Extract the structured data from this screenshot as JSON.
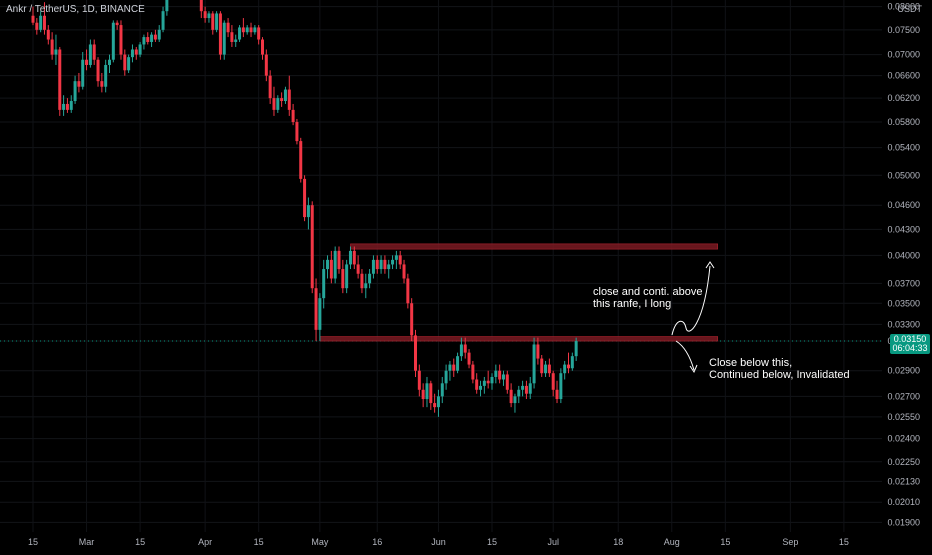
{
  "header": {
    "symbol": "Ankr / TetherUS, 1D, BINANCE",
    "currency": "USDT"
  },
  "price_tag": {
    "price": "0.03150",
    "countdown": "06:04:33"
  },
  "annotations": {
    "upper_note": "close and conti. above\nthis ranfe, I long",
    "lower_note": "Close below this,\nContinued below, Invalidated"
  },
  "colors": {
    "background": "#000000",
    "up": "#26a69a",
    "down": "#f23645",
    "zone": "#7a1a22",
    "text": "#b2b5be",
    "price_tag": "#089981"
  },
  "chart_data": {
    "type": "candlestick",
    "scale": "log",
    "ylim": [
      0.0185,
      0.0815
    ],
    "yticks": [
      "0.08000",
      "0.07500",
      "0.07000",
      "0.06600",
      "0.06200",
      "0.05800",
      "0.05400",
      "0.05000",
      "0.04600",
      "0.04300",
      "0.04000",
      "0.03700",
      "0.03500",
      "0.03300",
      "0.03150",
      "0.02900",
      "0.02700",
      "0.02550",
      "0.02400",
      "0.02250",
      "0.02130",
      "0.02010",
      "0.01900"
    ],
    "xticks": [
      "15",
      "Mar",
      "15",
      "Apr",
      "15",
      "May",
      "16",
      "Jun",
      "15",
      "Jul",
      "18",
      "Aug",
      "15",
      "Sep",
      "15"
    ],
    "zones": [
      {
        "name": "upper range",
        "from": "May 9",
        "to": "Aug 13",
        "low": 0.0407,
        "high": 0.0413
      },
      {
        "name": "lower range",
        "from": "May 1",
        "to": "Aug 13",
        "low": 0.0315,
        "high": 0.0319
      }
    ],
    "current_price": 0.0315,
    "candles": [
      {
        "date": "Feb 15",
        "o": 0.078,
        "h": 0.08,
        "l": 0.076,
        "c": 0.0765
      },
      {
        "date": "Feb 16",
        "o": 0.0765,
        "h": 0.0775,
        "l": 0.074,
        "c": 0.075
      },
      {
        "date": "Feb 17",
        "o": 0.075,
        "h": 0.079,
        "l": 0.0745,
        "c": 0.078
      },
      {
        "date": "Feb 18",
        "o": 0.078,
        "h": 0.081,
        "l": 0.074,
        "c": 0.075
      },
      {
        "date": "Feb 19",
        "o": 0.075,
        "h": 0.076,
        "l": 0.072,
        "c": 0.073
      },
      {
        "date": "Feb 20",
        "o": 0.073,
        "h": 0.0745,
        "l": 0.069,
        "c": 0.07
      },
      {
        "date": "Feb 21",
        "o": 0.07,
        "h": 0.074,
        "l": 0.068,
        "c": 0.071
      },
      {
        "date": "Feb 22",
        "o": 0.071,
        "h": 0.0715,
        "l": 0.059,
        "c": 0.06
      },
      {
        "date": "Feb 23",
        "o": 0.06,
        "h": 0.0625,
        "l": 0.059,
        "c": 0.061
      },
      {
        "date": "Feb 24",
        "o": 0.061,
        "h": 0.062,
        "l": 0.0595,
        "c": 0.06
      },
      {
        "date": "Feb 25",
        "o": 0.06,
        "h": 0.0625,
        "l": 0.0595,
        "c": 0.0615
      },
      {
        "date": "Feb 26",
        "o": 0.0615,
        "h": 0.066,
        "l": 0.061,
        "c": 0.065
      },
      {
        "date": "Feb 27",
        "o": 0.065,
        "h": 0.0665,
        "l": 0.063,
        "c": 0.064
      },
      {
        "date": "Feb 28",
        "o": 0.064,
        "h": 0.0705,
        "l": 0.0635,
        "c": 0.069
      },
      {
        "date": "Mar 1",
        "o": 0.069,
        "h": 0.071,
        "l": 0.067,
        "c": 0.068
      },
      {
        "date": "Mar 2",
        "o": 0.068,
        "h": 0.073,
        "l": 0.0675,
        "c": 0.072
      },
      {
        "date": "Mar 3",
        "o": 0.072,
        "h": 0.073,
        "l": 0.068,
        "c": 0.069
      },
      {
        "date": "Mar 4",
        "o": 0.069,
        "h": 0.0695,
        "l": 0.064,
        "c": 0.065
      },
      {
        "date": "Mar 5",
        "o": 0.065,
        "h": 0.0665,
        "l": 0.063,
        "c": 0.064
      },
      {
        "date": "Mar 6",
        "o": 0.064,
        "h": 0.069,
        "l": 0.063,
        "c": 0.068
      },
      {
        "date": "Mar 7",
        "o": 0.068,
        "h": 0.07,
        "l": 0.0665,
        "c": 0.069
      },
      {
        "date": "Mar 8",
        "o": 0.069,
        "h": 0.077,
        "l": 0.0685,
        "c": 0.0765
      },
      {
        "date": "Mar 9",
        "o": 0.0765,
        "h": 0.077,
        "l": 0.075,
        "c": 0.076
      },
      {
        "date": "Mar 10",
        "o": 0.076,
        "h": 0.077,
        "l": 0.069,
        "c": 0.07
      },
      {
        "date": "Mar 11",
        "o": 0.07,
        "h": 0.071,
        "l": 0.066,
        "c": 0.067
      },
      {
        "date": "Mar 12",
        "o": 0.067,
        "h": 0.07,
        "l": 0.0665,
        "c": 0.0695
      },
      {
        "date": "Mar 13",
        "o": 0.0695,
        "h": 0.072,
        "l": 0.0685,
        "c": 0.071
      },
      {
        "date": "Mar 14",
        "o": 0.071,
        "h": 0.0715,
        "l": 0.069,
        "c": 0.07
      },
      {
        "date": "Mar 15",
        "o": 0.07,
        "h": 0.0725,
        "l": 0.0695,
        "c": 0.072
      },
      {
        "date": "Mar 16",
        "o": 0.072,
        "h": 0.074,
        "l": 0.071,
        "c": 0.0735
      },
      {
        "date": "Mar 17",
        "o": 0.0735,
        "h": 0.0745,
        "l": 0.072,
        "c": 0.0725
      },
      {
        "date": "Mar 18",
        "o": 0.0725,
        "h": 0.0745,
        "l": 0.0715,
        "c": 0.074
      },
      {
        "date": "Mar 19",
        "o": 0.074,
        "h": 0.075,
        "l": 0.0725,
        "c": 0.073
      },
      {
        "date": "Mar 20",
        "o": 0.073,
        "h": 0.076,
        "l": 0.0725,
        "c": 0.075
      },
      {
        "date": "Mar 21",
        "o": 0.075,
        "h": 0.08,
        "l": 0.0745,
        "c": 0.079
      },
      {
        "date": "Mar 22",
        "o": 0.079,
        "h": 0.082,
        "l": 0.078,
        "c": 0.0815
      },
      {
        "date": "Mar 31",
        "o": 0.0815,
        "h": 0.082,
        "l": 0.0775,
        "c": 0.079
      },
      {
        "date": "Apr 1",
        "o": 0.079,
        "h": 0.08,
        "l": 0.0765,
        "c": 0.0775
      },
      {
        "date": "Apr 2",
        "o": 0.0775,
        "h": 0.079,
        "l": 0.0765,
        "c": 0.0785
      },
      {
        "date": "Apr 3",
        "o": 0.0785,
        "h": 0.079,
        "l": 0.074,
        "c": 0.075
      },
      {
        "date": "Apr 4",
        "o": 0.075,
        "h": 0.079,
        "l": 0.0745,
        "c": 0.0785
      },
      {
        "date": "Apr 5",
        "o": 0.0785,
        "h": 0.079,
        "l": 0.069,
        "c": 0.07
      },
      {
        "date": "Apr 6",
        "o": 0.07,
        "h": 0.077,
        "l": 0.069,
        "c": 0.0765
      },
      {
        "date": "Apr 7",
        "o": 0.0765,
        "h": 0.0775,
        "l": 0.0735,
        "c": 0.0745
      },
      {
        "date": "Apr 8",
        "o": 0.0745,
        "h": 0.076,
        "l": 0.0715,
        "c": 0.0725
      },
      {
        "date": "Apr 9",
        "o": 0.0725,
        "h": 0.074,
        "l": 0.0715,
        "c": 0.073
      },
      {
        "date": "Apr 10",
        "o": 0.073,
        "h": 0.076,
        "l": 0.0725,
        "c": 0.0755
      },
      {
        "date": "Apr 11",
        "o": 0.0755,
        "h": 0.0775,
        "l": 0.0735,
        "c": 0.0745
      },
      {
        "date": "Apr 12",
        "o": 0.0745,
        "h": 0.076,
        "l": 0.074,
        "c": 0.0755
      },
      {
        "date": "Apr 13",
        "o": 0.0755,
        "h": 0.0765,
        "l": 0.0735,
        "c": 0.0745
      },
      {
        "date": "Apr 14",
        "o": 0.0745,
        "h": 0.076,
        "l": 0.074,
        "c": 0.0755
      },
      {
        "date": "Apr 15",
        "o": 0.0755,
        "h": 0.076,
        "l": 0.072,
        "c": 0.073
      },
      {
        "date": "Apr 16",
        "o": 0.073,
        "h": 0.0735,
        "l": 0.069,
        "c": 0.07
      },
      {
        "date": "Apr 17",
        "o": 0.07,
        "h": 0.071,
        "l": 0.065,
        "c": 0.066
      },
      {
        "date": "Apr 18",
        "o": 0.066,
        "h": 0.067,
        "l": 0.061,
        "c": 0.062
      },
      {
        "date": "Apr 19",
        "o": 0.062,
        "h": 0.064,
        "l": 0.059,
        "c": 0.06
      },
      {
        "date": "Apr 20",
        "o": 0.06,
        "h": 0.0625,
        "l": 0.0595,
        "c": 0.062
      },
      {
        "date": "Apr 21",
        "o": 0.062,
        "h": 0.063,
        "l": 0.0605,
        "c": 0.0615
      },
      {
        "date": "Apr 22",
        "o": 0.0615,
        "h": 0.064,
        "l": 0.061,
        "c": 0.0635
      },
      {
        "date": "Apr 23",
        "o": 0.0635,
        "h": 0.066,
        "l": 0.059,
        "c": 0.06
      },
      {
        "date": "Apr 24",
        "o": 0.06,
        "h": 0.061,
        "l": 0.0575,
        "c": 0.058
      },
      {
        "date": "Apr 25",
        "o": 0.058,
        "h": 0.0585,
        "l": 0.0545,
        "c": 0.055
      },
      {
        "date": "Apr 26",
        "o": 0.055,
        "h": 0.0555,
        "l": 0.049,
        "c": 0.0495
      },
      {
        "date": "Apr 27",
        "o": 0.0495,
        "h": 0.05,
        "l": 0.044,
        "c": 0.0445
      },
      {
        "date": "Apr 28",
        "o": 0.0445,
        "h": 0.047,
        "l": 0.043,
        "c": 0.046
      },
      {
        "date": "Apr 29",
        "o": 0.046,
        "h": 0.0465,
        "l": 0.036,
        "c": 0.0365
      },
      {
        "date": "Apr 30",
        "o": 0.0365,
        "h": 0.0375,
        "l": 0.0315,
        "c": 0.0325
      },
      {
        "date": "May 1",
        "o": 0.0325,
        "h": 0.036,
        "l": 0.0315,
        "c": 0.0355
      },
      {
        "date": "May 2",
        "o": 0.0355,
        "h": 0.0395,
        "l": 0.0345,
        "c": 0.0385
      },
      {
        "date": "May 3",
        "o": 0.0385,
        "h": 0.04,
        "l": 0.0375,
        "c": 0.0395
      },
      {
        "date": "May 4",
        "o": 0.0395,
        "h": 0.0405,
        "l": 0.037,
        "c": 0.0375
      },
      {
        "date": "May 5",
        "o": 0.0375,
        "h": 0.041,
        "l": 0.037,
        "c": 0.0405
      },
      {
        "date": "May 6",
        "o": 0.0405,
        "h": 0.041,
        "l": 0.038,
        "c": 0.0385
      },
      {
        "date": "May 7",
        "o": 0.0385,
        "h": 0.0395,
        "l": 0.036,
        "c": 0.0365
      },
      {
        "date": "May 8",
        "o": 0.0365,
        "h": 0.0395,
        "l": 0.036,
        "c": 0.039
      },
      {
        "date": "May 9",
        "o": 0.039,
        "h": 0.041,
        "l": 0.0385,
        "c": 0.0405
      },
      {
        "date": "May 10",
        "o": 0.0405,
        "h": 0.041,
        "l": 0.0385,
        "c": 0.039
      },
      {
        "date": "May 11",
        "o": 0.039,
        "h": 0.04,
        "l": 0.0375,
        "c": 0.038
      },
      {
        "date": "May 12",
        "o": 0.038,
        "h": 0.0385,
        "l": 0.036,
        "c": 0.0365
      },
      {
        "date": "May 13",
        "o": 0.0365,
        "h": 0.038,
        "l": 0.0355,
        "c": 0.037
      },
      {
        "date": "May 14",
        "o": 0.037,
        "h": 0.0385,
        "l": 0.0365,
        "c": 0.038
      },
      {
        "date": "May 15",
        "o": 0.038,
        "h": 0.04,
        "l": 0.0375,
        "c": 0.0395
      },
      {
        "date": "May 16",
        "o": 0.0395,
        "h": 0.04,
        "l": 0.038,
        "c": 0.0385
      },
      {
        "date": "May 17",
        "o": 0.0385,
        "h": 0.04,
        "l": 0.038,
        "c": 0.0395
      },
      {
        "date": "May 18",
        "o": 0.0395,
        "h": 0.04,
        "l": 0.038,
        "c": 0.0385
      },
      {
        "date": "May 19",
        "o": 0.0385,
        "h": 0.0395,
        "l": 0.0375,
        "c": 0.039
      },
      {
        "date": "May 20",
        "o": 0.039,
        "h": 0.04,
        "l": 0.0385,
        "c": 0.0395
      },
      {
        "date": "May 21",
        "o": 0.0395,
        "h": 0.0405,
        "l": 0.0385,
        "c": 0.04
      },
      {
        "date": "May 22",
        "o": 0.04,
        "h": 0.0405,
        "l": 0.0385,
        "c": 0.039
      },
      {
        "date": "May 23",
        "o": 0.039,
        "h": 0.0395,
        "l": 0.037,
        "c": 0.0375
      },
      {
        "date": "May 24",
        "o": 0.0375,
        "h": 0.038,
        "l": 0.0345,
        "c": 0.035
      },
      {
        "date": "May 25",
        "o": 0.035,
        "h": 0.0355,
        "l": 0.0315,
        "c": 0.032
      },
      {
        "date": "May 26",
        "o": 0.032,
        "h": 0.0325,
        "l": 0.0285,
        "c": 0.029
      },
      {
        "date": "May 27",
        "o": 0.029,
        "h": 0.0295,
        "l": 0.027,
        "c": 0.0275
      },
      {
        "date": "May 28",
        "o": 0.0275,
        "h": 0.028,
        "l": 0.0262,
        "c": 0.0268
      },
      {
        "date": "May 29",
        "o": 0.0268,
        "h": 0.0285,
        "l": 0.0262,
        "c": 0.028
      },
      {
        "date": "May 30",
        "o": 0.028,
        "h": 0.0282,
        "l": 0.026,
        "c": 0.0265
      },
      {
        "date": "May 31",
        "o": 0.0265,
        "h": 0.0272,
        "l": 0.0258,
        "c": 0.0262
      },
      {
        "date": "Jun 1",
        "o": 0.0262,
        "h": 0.0275,
        "l": 0.0255,
        "c": 0.027
      },
      {
        "date": "Jun 2",
        "o": 0.027,
        "h": 0.0285,
        "l": 0.0265,
        "c": 0.028
      },
      {
        "date": "Jun 3",
        "o": 0.028,
        "h": 0.0295,
        "l": 0.0275,
        "c": 0.029
      },
      {
        "date": "Jun 4",
        "o": 0.029,
        "h": 0.0298,
        "l": 0.0282,
        "c": 0.0295
      },
      {
        "date": "Jun 5",
        "o": 0.0295,
        "h": 0.03,
        "l": 0.0285,
        "c": 0.029
      },
      {
        "date": "Jun 6",
        "o": 0.029,
        "h": 0.0305,
        "l": 0.0288,
        "c": 0.0302
      },
      {
        "date": "Jun 7",
        "o": 0.0302,
        "h": 0.0318,
        "l": 0.0298,
        "c": 0.0312
      },
      {
        "date": "Jun 8",
        "o": 0.0312,
        "h": 0.0318,
        "l": 0.03,
        "c": 0.0305
      },
      {
        "date": "Jun 9",
        "o": 0.0305,
        "h": 0.0308,
        "l": 0.0292,
        "c": 0.0295
      },
      {
        "date": "Jun 10",
        "o": 0.0295,
        "h": 0.0298,
        "l": 0.028,
        "c": 0.0283
      },
      {
        "date": "Jun 11",
        "o": 0.0283,
        "h": 0.0288,
        "l": 0.0272,
        "c": 0.0275
      },
      {
        "date": "Jun 12",
        "o": 0.0275,
        "h": 0.0282,
        "l": 0.027,
        "c": 0.0278
      },
      {
        "date": "Jun 13",
        "o": 0.0278,
        "h": 0.0285,
        "l": 0.0272,
        "c": 0.0282
      },
      {
        "date": "Jun 14",
        "o": 0.0282,
        "h": 0.029,
        "l": 0.0276,
        "c": 0.028
      },
      {
        "date": "Jun 15",
        "o": 0.028,
        "h": 0.0288,
        "l": 0.0275,
        "c": 0.0285
      },
      {
        "date": "Jun 16",
        "o": 0.0285,
        "h": 0.0295,
        "l": 0.028,
        "c": 0.029
      },
      {
        "date": "Jun 17",
        "o": 0.029,
        "h": 0.0295,
        "l": 0.028,
        "c": 0.0283
      },
      {
        "date": "Jun 18",
        "o": 0.0283,
        "h": 0.029,
        "l": 0.0278,
        "c": 0.0287
      },
      {
        "date": "Jun 19",
        "o": 0.0287,
        "h": 0.029,
        "l": 0.0272,
        "c": 0.0275
      },
      {
        "date": "Jun 20",
        "o": 0.0275,
        "h": 0.028,
        "l": 0.0262,
        "c": 0.0265
      },
      {
        "date": "Jun 21",
        "o": 0.0265,
        "h": 0.0272,
        "l": 0.0258,
        "c": 0.027
      },
      {
        "date": "Jun 22",
        "o": 0.027,
        "h": 0.0278,
        "l": 0.0265,
        "c": 0.0275
      },
      {
        "date": "Jun 23",
        "o": 0.0275,
        "h": 0.0282,
        "l": 0.027,
        "c": 0.0278
      },
      {
        "date": "Jun 24",
        "o": 0.0278,
        "h": 0.0282,
        "l": 0.0268,
        "c": 0.0272
      },
      {
        "date": "Jun 25",
        "o": 0.0272,
        "h": 0.0285,
        "l": 0.0268,
        "c": 0.028
      },
      {
        "date": "Jun 26",
        "o": 0.028,
        "h": 0.0318,
        "l": 0.0276,
        "c": 0.0312
      },
      {
        "date": "Jun 27",
        "o": 0.0312,
        "h": 0.0318,
        "l": 0.0295,
        "c": 0.03
      },
      {
        "date": "Jun 28",
        "o": 0.03,
        "h": 0.0303,
        "l": 0.0285,
        "c": 0.0288
      },
      {
        "date": "Jun 29",
        "o": 0.0288,
        "h": 0.0298,
        "l": 0.0285,
        "c": 0.0295
      },
      {
        "date": "Jun 30",
        "o": 0.0295,
        "h": 0.03,
        "l": 0.0285,
        "c": 0.0288
      },
      {
        "date": "Jul 1",
        "o": 0.0288,
        "h": 0.029,
        "l": 0.027,
        "c": 0.0275
      },
      {
        "date": "Jul 2",
        "o": 0.0275,
        "h": 0.0282,
        "l": 0.0265,
        "c": 0.0268
      },
      {
        "date": "Jul 3",
        "o": 0.0268,
        "h": 0.0292,
        "l": 0.0265,
        "c": 0.0288
      },
      {
        "date": "Jul 4",
        "o": 0.0288,
        "h": 0.0298,
        "l": 0.0283,
        "c": 0.0295
      },
      {
        "date": "Jul 5",
        "o": 0.0295,
        "h": 0.0305,
        "l": 0.0288,
        "c": 0.0292
      },
      {
        "date": "Jul 6",
        "o": 0.0292,
        "h": 0.0305,
        "l": 0.029,
        "c": 0.0302
      },
      {
        "date": "Jul 7",
        "o": 0.0302,
        "h": 0.0318,
        "l": 0.0298,
        "c": 0.0315
      }
    ]
  }
}
